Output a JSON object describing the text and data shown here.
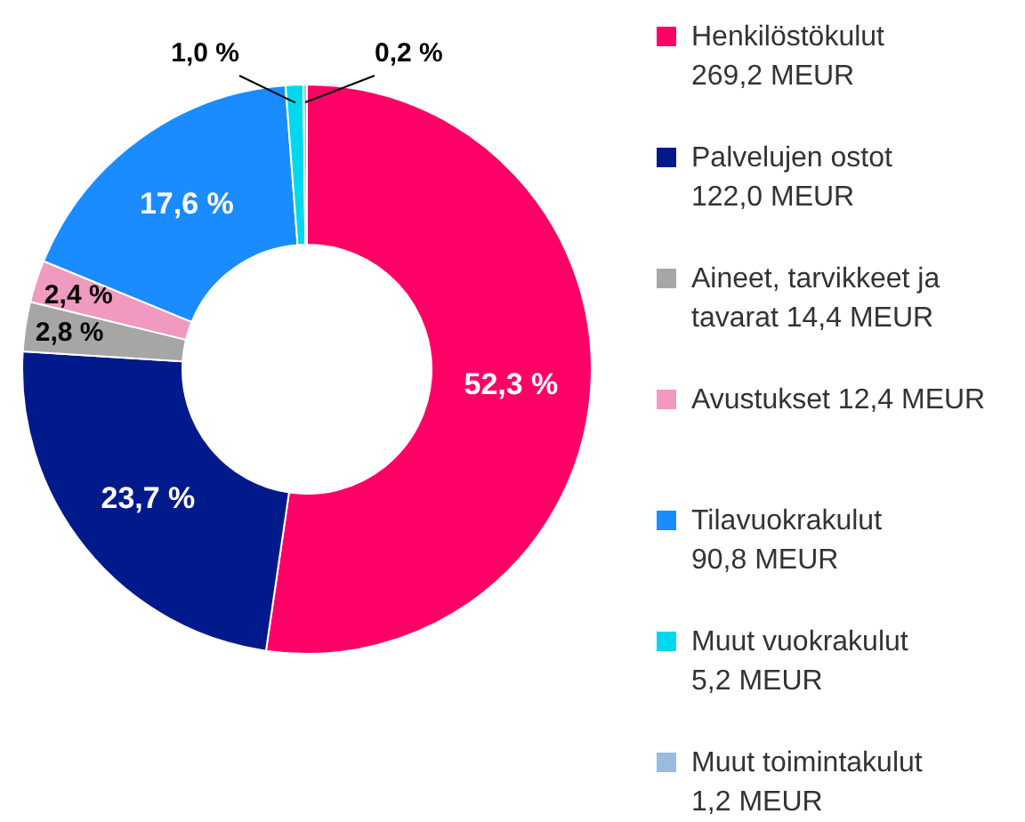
{
  "chart_data": {
    "type": "donut",
    "categories": [
      "Henkilöstökulut\n269,2 MEUR",
      "Palvelujen ostot\n122,0 MEUR",
      "Aineet, tarvikkeet ja\ntavarat 14,4 MEUR",
      "Avustukset 12,4 MEUR",
      "Tilavuokrakulut\n90,8 MEUR",
      "Muut vuokrakulut\n5,2 MEUR",
      "Muut toimintakulut\n1,2 MEUR"
    ],
    "values": [
      52.3,
      23.7,
      2.8,
      2.4,
      17.6,
      1.0,
      0.2
    ],
    "colors": [
      "#ff0066",
      "#001a8c",
      "#a6a6a6",
      "#f09ac0",
      "#1a8cff",
      "#00d8f0",
      "#99bbdd"
    ],
    "value_labels": [
      "52,3 %",
      "23,7 %",
      "2,8 %",
      "2,4 %",
      "17,6 %",
      "1,0 %",
      "0,2 %"
    ],
    "legend": "right"
  }
}
